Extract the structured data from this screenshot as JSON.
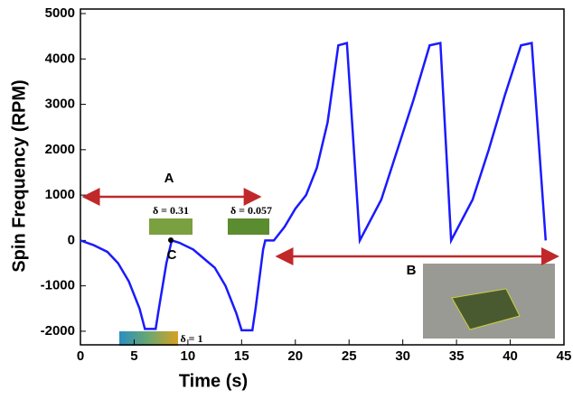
{
  "chart_data": {
    "type": "line",
    "x_label": "Time (s)",
    "y_label": "Spin Frequency (RPM)",
    "x": [
      0,
      1.2,
      2.5,
      3.5,
      4.5,
      5.5,
      6,
      7,
      7.3,
      8,
      8.5,
      9.2,
      10.5,
      11.5,
      12.5,
      13.5,
      14.5,
      15,
      16,
      16.3,
      17,
      17.2,
      18,
      19,
      20,
      21,
      22,
      23,
      24,
      24.8,
      26,
      28,
      29.5,
      31,
      32.5,
      33.5,
      34.5,
      36.5,
      38,
      39.5,
      41,
      42,
      43.3
    ],
    "series": [
      {
        "color": "#1a1aff",
        "values": [
          0,
          -100,
          -250,
          -500,
          -900,
          -1500,
          -1950,
          -1950,
          -1500,
          -500,
          0,
          -50,
          -200,
          -400,
          -600,
          -1000,
          -1600,
          -1980,
          -1980,
          -1500,
          -200,
          0,
          0,
          300,
          700,
          1000,
          1600,
          2600,
          4300,
          4350,
          0,
          900,
          2000,
          3100,
          4300,
          4350,
          0,
          900,
          2000,
          3200,
          4300,
          4350,
          0
        ]
      }
    ],
    "xlim": [
      0,
      45
    ],
    "ylim": [
      -2300,
      5100
    ],
    "xticks": [
      0,
      5,
      10,
      15,
      20,
      25,
      30,
      35,
      40,
      45
    ],
    "yticks": [
      -2000,
      -1000,
      0,
      1000,
      2000,
      3000,
      4000,
      5000
    ],
    "annotations": [
      "A",
      "B",
      "C",
      "δ = 0.31",
      "δ = 0.057",
      "δ = 1"
    ]
  }
}
